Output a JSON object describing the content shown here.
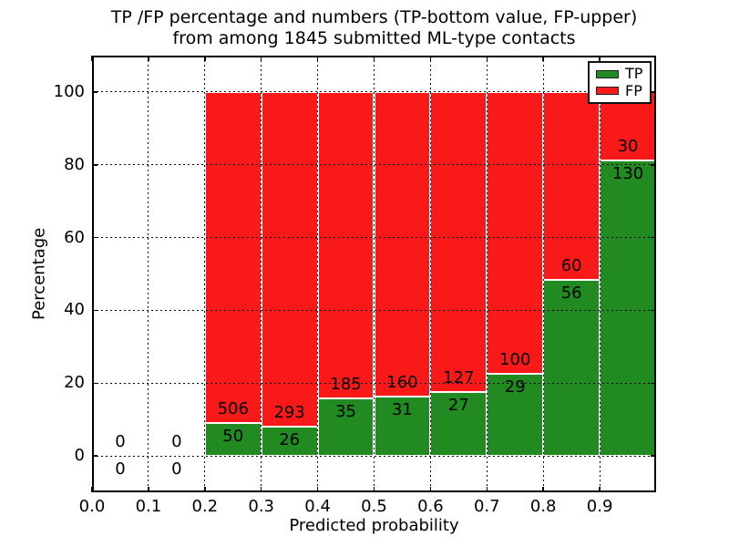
{
  "figure": {
    "title_line1": "TP /FP percentage and numbers (TP-bottom value, FP-upper)",
    "title_line2": "from among 1845 submitted ML-type contacts"
  },
  "axes": {
    "xlabel": "Predicted probability",
    "ylabel": "Percentage"
  },
  "legend": {
    "position": "upper-right",
    "items": [
      {
        "label": "TP",
        "color": "#218a21"
      },
      {
        "label": "FP",
        "color": "#fa1919"
      }
    ]
  },
  "colors": {
    "tp": "#218a21",
    "fp": "#fa1919",
    "bar_edge": "#ffffff",
    "grid": "#000000",
    "text": "#000000",
    "background": "#ffffff"
  },
  "chart_data": {
    "type": "bar",
    "stacked": true,
    "normalized": "each bin stacked to 100%, labels show raw counts (TP bottom, FP upper)",
    "title": "TP /FP percentage and numbers (TP-bottom value, FP-upper) from among 1845 submitted ML-type contacts",
    "xlabel": "Predicted probability",
    "ylabel": "Percentage",
    "xlim": [
      0.0,
      1.0
    ],
    "ylim": [
      -10,
      110
    ],
    "x_ticks": [
      "0.0",
      "0.1",
      "0.2",
      "0.3",
      "0.4",
      "0.5",
      "0.6",
      "0.7",
      "0.8",
      "0.9"
    ],
    "y_ticks": [
      0,
      20,
      40,
      60,
      80,
      100
    ],
    "grid": true,
    "legend_entries": [
      "TP",
      "FP"
    ],
    "total_contacts": 1845,
    "bins": [
      {
        "range": [
          0.0,
          0.1
        ],
        "tp": 0,
        "fp": 0
      },
      {
        "range": [
          0.1,
          0.2
        ],
        "tp": 0,
        "fp": 0
      },
      {
        "range": [
          0.2,
          0.3
        ],
        "tp": 50,
        "fp": 506
      },
      {
        "range": [
          0.3,
          0.4
        ],
        "tp": 26,
        "fp": 293
      },
      {
        "range": [
          0.4,
          0.5
        ],
        "tp": 35,
        "fp": 185
      },
      {
        "range": [
          0.5,
          0.6
        ],
        "tp": 31,
        "fp": 160
      },
      {
        "range": [
          0.6,
          0.7
        ],
        "tp": 27,
        "fp": 127
      },
      {
        "range": [
          0.7,
          0.8
        ],
        "tp": 29,
        "fp": 100
      },
      {
        "range": [
          0.8,
          0.9
        ],
        "tp": 56,
        "fp": 60
      },
      {
        "range": [
          0.9,
          1.0
        ],
        "tp": 130,
        "fp": 30
      }
    ]
  }
}
